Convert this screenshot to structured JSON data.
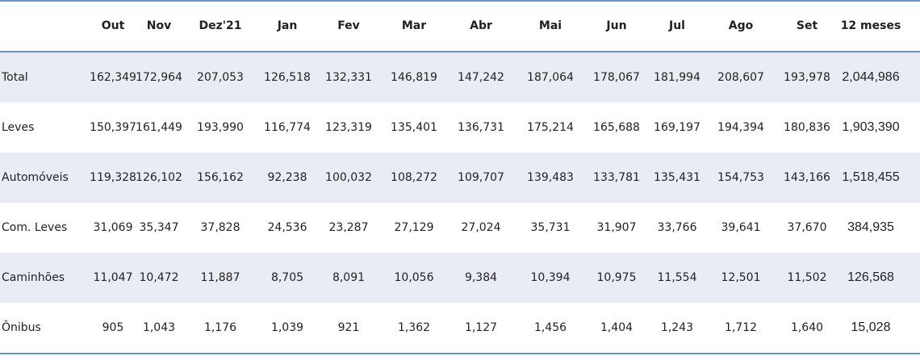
{
  "table": {
    "columns": [
      "Out",
      "Nov",
      "Dez'21",
      "Jan",
      "Fev",
      "Mar",
      "Abr",
      "Mai",
      "Jun",
      "Jul",
      "Ago",
      "Set",
      "12 meses"
    ],
    "rows": [
      [
        "Total",
        "162,349",
        "172,964",
        "207,053",
        "126,518",
        "132,331",
        "146,819",
        "147,242",
        "187,064",
        "178,067",
        "181,994",
        "208,607",
        "193,978",
        "2,044,986"
      ],
      [
        "Leves",
        "150,397",
        "161,449",
        "193,990",
        "116,774",
        "123,319",
        "135,401",
        "136,731",
        "175,214",
        "165,688",
        "169,197",
        "194,394",
        "180,836",
        "1,903,390"
      ],
      [
        "Automóveis",
        "119,328",
        "126,102",
        "156,162",
        "92,238",
        "100,032",
        "108,272",
        "109,707",
        "139,483",
        "133,781",
        "135,431",
        "154,753",
        "143,166",
        "1,518,455"
      ],
      [
        "Com. Leves",
        "31,069",
        "35,347",
        "37,828",
        "24,536",
        "23,287",
        "27,129",
        "27,024",
        "35,731",
        "31,907",
        "33,766",
        "39,641",
        "37,670",
        "384,935"
      ],
      [
        "Caminhões",
        "11,047",
        "10,472",
        "11,887",
        "8,705",
        "8,091",
        "10,056",
        "9,384",
        "10,394",
        "10,975",
        "11,554",
        "12,501",
        "11,502",
        "126,568"
      ],
      [
        "Ônibus",
        "905",
        "1,043",
        "1,176",
        "1,039",
        "921",
        "1,362",
        "1,127",
        "1,456",
        "1,404",
        "1,243",
        "1,712",
        "1,640",
        "15,028"
      ]
    ]
  }
}
